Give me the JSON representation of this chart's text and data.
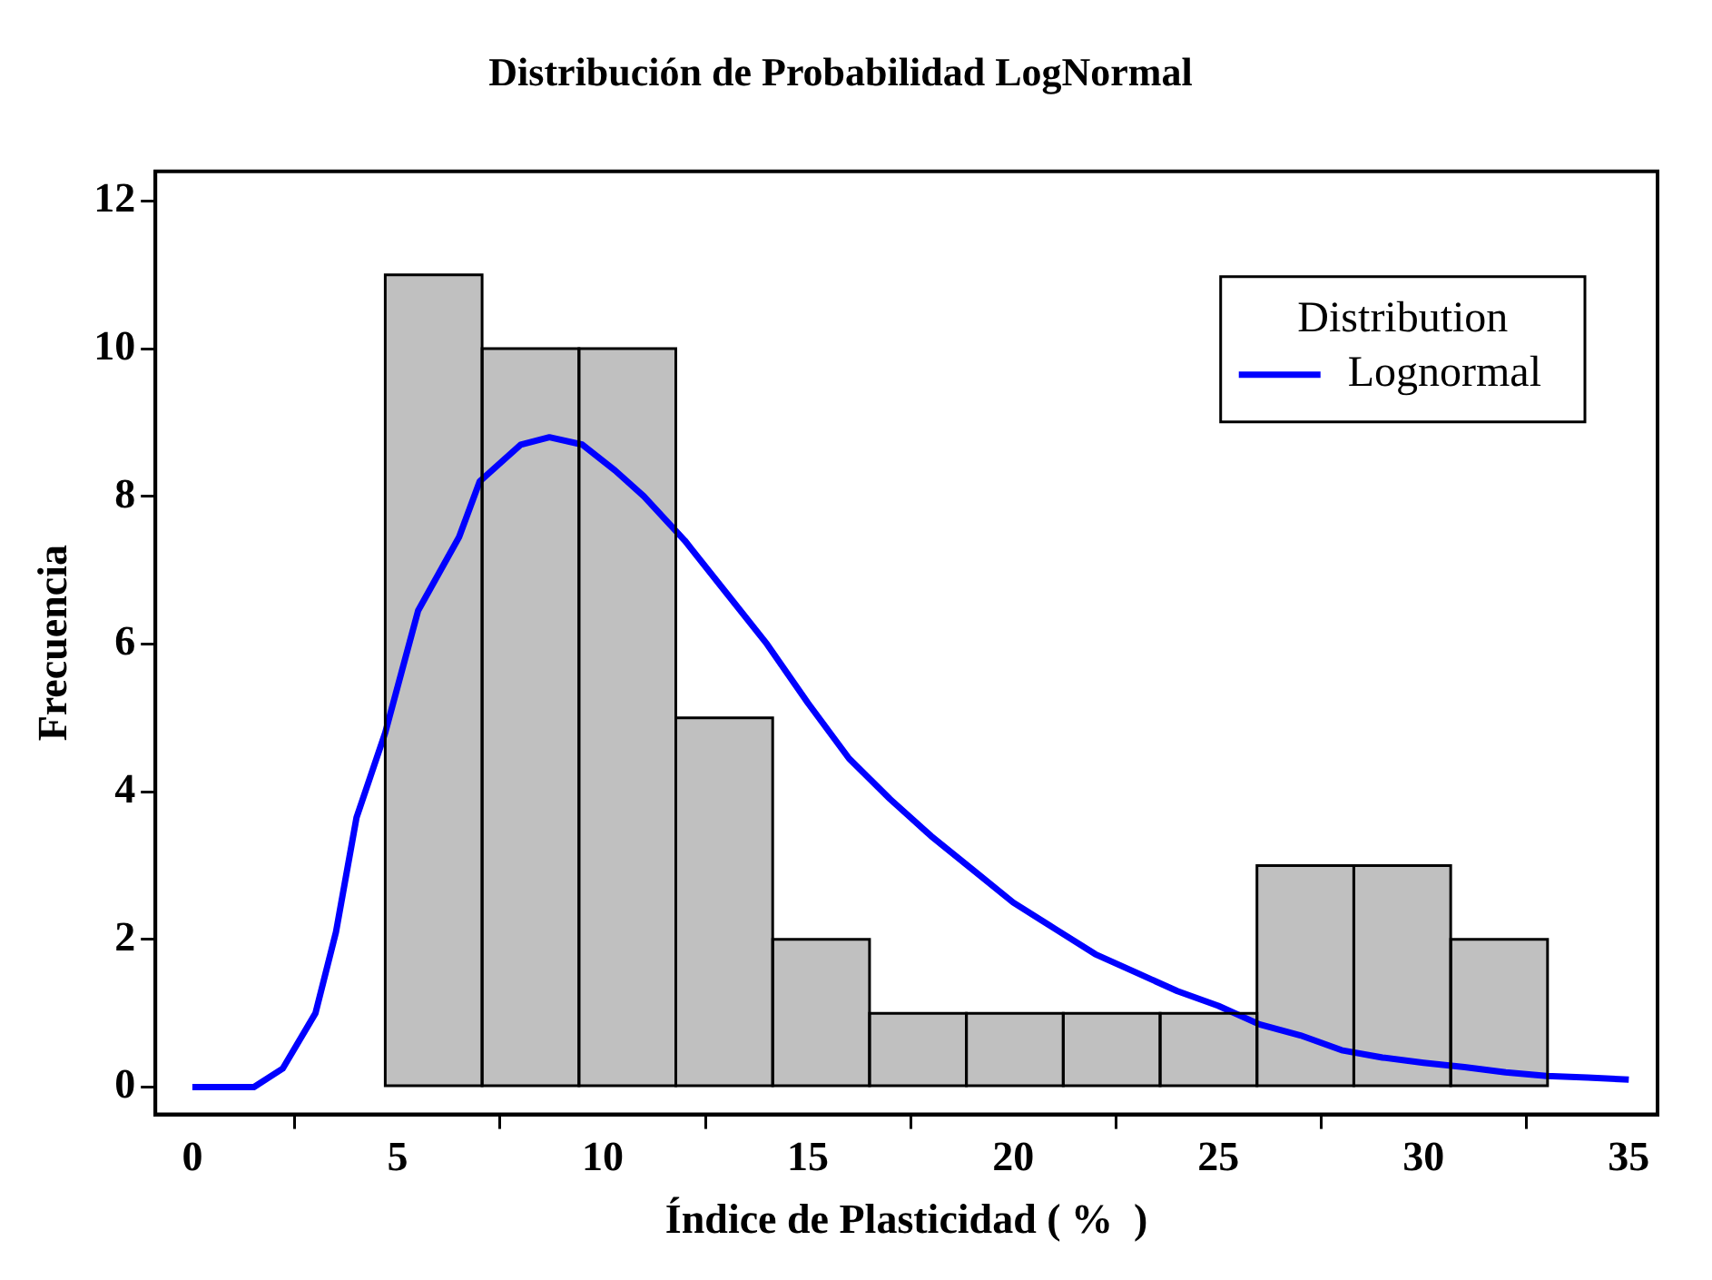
{
  "chart_data": {
    "type": "histogram",
    "title": "Distribución de Probabilidad LogNormal",
    "xlabel": "Índice de Plasticidad ( %  )",
    "ylabel": "Frecuencia",
    "legend_title": "Distribution",
    "legend": "top right",
    "grid": false,
    "bins": [
      4.7,
      7.06,
      9.42,
      11.78,
      14.14,
      16.5,
      18.86,
      21.22,
      23.58,
      25.94,
      28.3,
      30.66,
      33.02
    ],
    "values": [
      11,
      10,
      10,
      5,
      2,
      1,
      1,
      1,
      1,
      3,
      3,
      2
    ],
    "color": "#c0c0c0",
    "xlim": [
      -0.9,
      35.7
    ],
    "xticks": [
      0,
      5,
      10,
      15,
      20,
      25,
      30,
      35
    ],
    "ylim": [
      -0.37,
      12.4
    ],
    "yticks": [
      0,
      2,
      4,
      6,
      8,
      10,
      12
    ],
    "series": [
      {
        "type": "line",
        "name": "Lognormal",
        "color": "#0000ff",
        "x": [
          0,
          1.5,
          2.2,
          3,
          3.5,
          4,
          4.7,
          5.5,
          6.5,
          7,
          8,
          8.7,
          9.5,
          10.3,
          11,
          12,
          13,
          14,
          15,
          16,
          17,
          18,
          19,
          20,
          21,
          22,
          23,
          24,
          25,
          26,
          27,
          28,
          29,
          30,
          31,
          32,
          33,
          34,
          35
        ],
        "values": [
          0,
          0,
          0.25,
          1.0,
          2.1,
          3.65,
          4.8,
          6.45,
          7.45,
          8.2,
          8.7,
          8.8,
          8.7,
          8.35,
          8,
          7.4,
          6.7,
          6.0,
          5.2,
          4.45,
          3.9,
          3.4,
          2.95,
          2.5,
          2.15,
          1.8,
          1.55,
          1.3,
          1.1,
          0.85,
          0.7,
          0.5,
          0.4,
          0.33,
          0.27,
          0.2,
          0.15,
          0.13,
          0.1
        ]
      }
    ]
  }
}
